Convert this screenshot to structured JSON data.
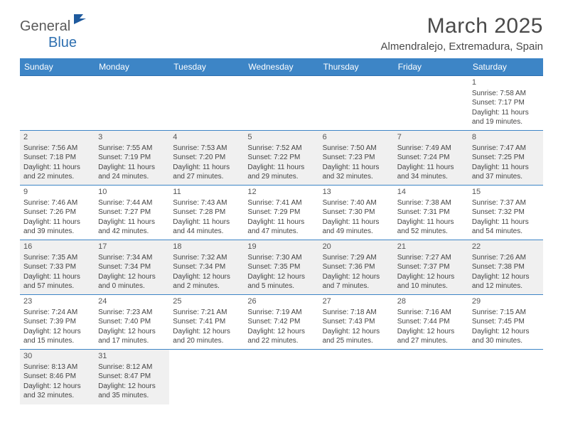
{
  "logo": {
    "main": "General",
    "accent": "Blue"
  },
  "title": "March 2025",
  "location": "Almendralejo, Extremadura, Spain",
  "colors": {
    "header_bg": "#3d85c6",
    "header_text": "#ffffff",
    "border": "#3d85c6",
    "shaded_bg": "#f0f0f0",
    "text": "#444444",
    "logo_gray": "#5a5a5a",
    "logo_blue": "#2e6fb0"
  },
  "day_headers": [
    "Sunday",
    "Monday",
    "Tuesday",
    "Wednesday",
    "Thursday",
    "Friday",
    "Saturday"
  ],
  "weeks": [
    [
      {
        "empty": true
      },
      {
        "empty": true
      },
      {
        "empty": true
      },
      {
        "empty": true
      },
      {
        "empty": true
      },
      {
        "empty": true
      },
      {
        "n": "1",
        "sunrise": "7:58 AM",
        "sunset": "7:17 PM",
        "d1": "Daylight: 11 hours",
        "d2": "and 19 minutes."
      }
    ],
    [
      {
        "n": "2",
        "sunrise": "7:56 AM",
        "sunset": "7:18 PM",
        "d1": "Daylight: 11 hours",
        "d2": "and 22 minutes.",
        "shaded": true
      },
      {
        "n": "3",
        "sunrise": "7:55 AM",
        "sunset": "7:19 PM",
        "d1": "Daylight: 11 hours",
        "d2": "and 24 minutes.",
        "shaded": true
      },
      {
        "n": "4",
        "sunrise": "7:53 AM",
        "sunset": "7:20 PM",
        "d1": "Daylight: 11 hours",
        "d2": "and 27 minutes.",
        "shaded": true
      },
      {
        "n": "5",
        "sunrise": "7:52 AM",
        "sunset": "7:22 PM",
        "d1": "Daylight: 11 hours",
        "d2": "and 29 minutes.",
        "shaded": true
      },
      {
        "n": "6",
        "sunrise": "7:50 AM",
        "sunset": "7:23 PM",
        "d1": "Daylight: 11 hours",
        "d2": "and 32 minutes.",
        "shaded": true
      },
      {
        "n": "7",
        "sunrise": "7:49 AM",
        "sunset": "7:24 PM",
        "d1": "Daylight: 11 hours",
        "d2": "and 34 minutes.",
        "shaded": true
      },
      {
        "n": "8",
        "sunrise": "7:47 AM",
        "sunset": "7:25 PM",
        "d1": "Daylight: 11 hours",
        "d2": "and 37 minutes.",
        "shaded": true
      }
    ],
    [
      {
        "n": "9",
        "sunrise": "7:46 AM",
        "sunset": "7:26 PM",
        "d1": "Daylight: 11 hours",
        "d2": "and 39 minutes."
      },
      {
        "n": "10",
        "sunrise": "7:44 AM",
        "sunset": "7:27 PM",
        "d1": "Daylight: 11 hours",
        "d2": "and 42 minutes."
      },
      {
        "n": "11",
        "sunrise": "7:43 AM",
        "sunset": "7:28 PM",
        "d1": "Daylight: 11 hours",
        "d2": "and 44 minutes."
      },
      {
        "n": "12",
        "sunrise": "7:41 AM",
        "sunset": "7:29 PM",
        "d1": "Daylight: 11 hours",
        "d2": "and 47 minutes."
      },
      {
        "n": "13",
        "sunrise": "7:40 AM",
        "sunset": "7:30 PM",
        "d1": "Daylight: 11 hours",
        "d2": "and 49 minutes."
      },
      {
        "n": "14",
        "sunrise": "7:38 AM",
        "sunset": "7:31 PM",
        "d1": "Daylight: 11 hours",
        "d2": "and 52 minutes."
      },
      {
        "n": "15",
        "sunrise": "7:37 AM",
        "sunset": "7:32 PM",
        "d1": "Daylight: 11 hours",
        "d2": "and 54 minutes."
      }
    ],
    [
      {
        "n": "16",
        "sunrise": "7:35 AM",
        "sunset": "7:33 PM",
        "d1": "Daylight: 11 hours",
        "d2": "and 57 minutes.",
        "shaded": true
      },
      {
        "n": "17",
        "sunrise": "7:34 AM",
        "sunset": "7:34 PM",
        "d1": "Daylight: 12 hours",
        "d2": "and 0 minutes.",
        "shaded": true
      },
      {
        "n": "18",
        "sunrise": "7:32 AM",
        "sunset": "7:34 PM",
        "d1": "Daylight: 12 hours",
        "d2": "and 2 minutes.",
        "shaded": true
      },
      {
        "n": "19",
        "sunrise": "7:30 AM",
        "sunset": "7:35 PM",
        "d1": "Daylight: 12 hours",
        "d2": "and 5 minutes.",
        "shaded": true
      },
      {
        "n": "20",
        "sunrise": "7:29 AM",
        "sunset": "7:36 PM",
        "d1": "Daylight: 12 hours",
        "d2": "and 7 minutes.",
        "shaded": true
      },
      {
        "n": "21",
        "sunrise": "7:27 AM",
        "sunset": "7:37 PM",
        "d1": "Daylight: 12 hours",
        "d2": "and 10 minutes.",
        "shaded": true
      },
      {
        "n": "22",
        "sunrise": "7:26 AM",
        "sunset": "7:38 PM",
        "d1": "Daylight: 12 hours",
        "d2": "and 12 minutes.",
        "shaded": true
      }
    ],
    [
      {
        "n": "23",
        "sunrise": "7:24 AM",
        "sunset": "7:39 PM",
        "d1": "Daylight: 12 hours",
        "d2": "and 15 minutes."
      },
      {
        "n": "24",
        "sunrise": "7:23 AM",
        "sunset": "7:40 PM",
        "d1": "Daylight: 12 hours",
        "d2": "and 17 minutes."
      },
      {
        "n": "25",
        "sunrise": "7:21 AM",
        "sunset": "7:41 PM",
        "d1": "Daylight: 12 hours",
        "d2": "and 20 minutes."
      },
      {
        "n": "26",
        "sunrise": "7:19 AM",
        "sunset": "7:42 PM",
        "d1": "Daylight: 12 hours",
        "d2": "and 22 minutes."
      },
      {
        "n": "27",
        "sunrise": "7:18 AM",
        "sunset": "7:43 PM",
        "d1": "Daylight: 12 hours",
        "d2": "and 25 minutes."
      },
      {
        "n": "28",
        "sunrise": "7:16 AM",
        "sunset": "7:44 PM",
        "d1": "Daylight: 12 hours",
        "d2": "and 27 minutes."
      },
      {
        "n": "29",
        "sunrise": "7:15 AM",
        "sunset": "7:45 PM",
        "d1": "Daylight: 12 hours",
        "d2": "and 30 minutes."
      }
    ],
    [
      {
        "n": "30",
        "sunrise": "8:13 AM",
        "sunset": "8:46 PM",
        "d1": "Daylight: 12 hours",
        "d2": "and 32 minutes.",
        "shaded": true
      },
      {
        "n": "31",
        "sunrise": "8:12 AM",
        "sunset": "8:47 PM",
        "d1": "Daylight: 12 hours",
        "d2": "and 35 minutes.",
        "shaded": true
      },
      {
        "empty": true
      },
      {
        "empty": true
      },
      {
        "empty": true
      },
      {
        "empty": true
      },
      {
        "empty": true
      }
    ]
  ]
}
